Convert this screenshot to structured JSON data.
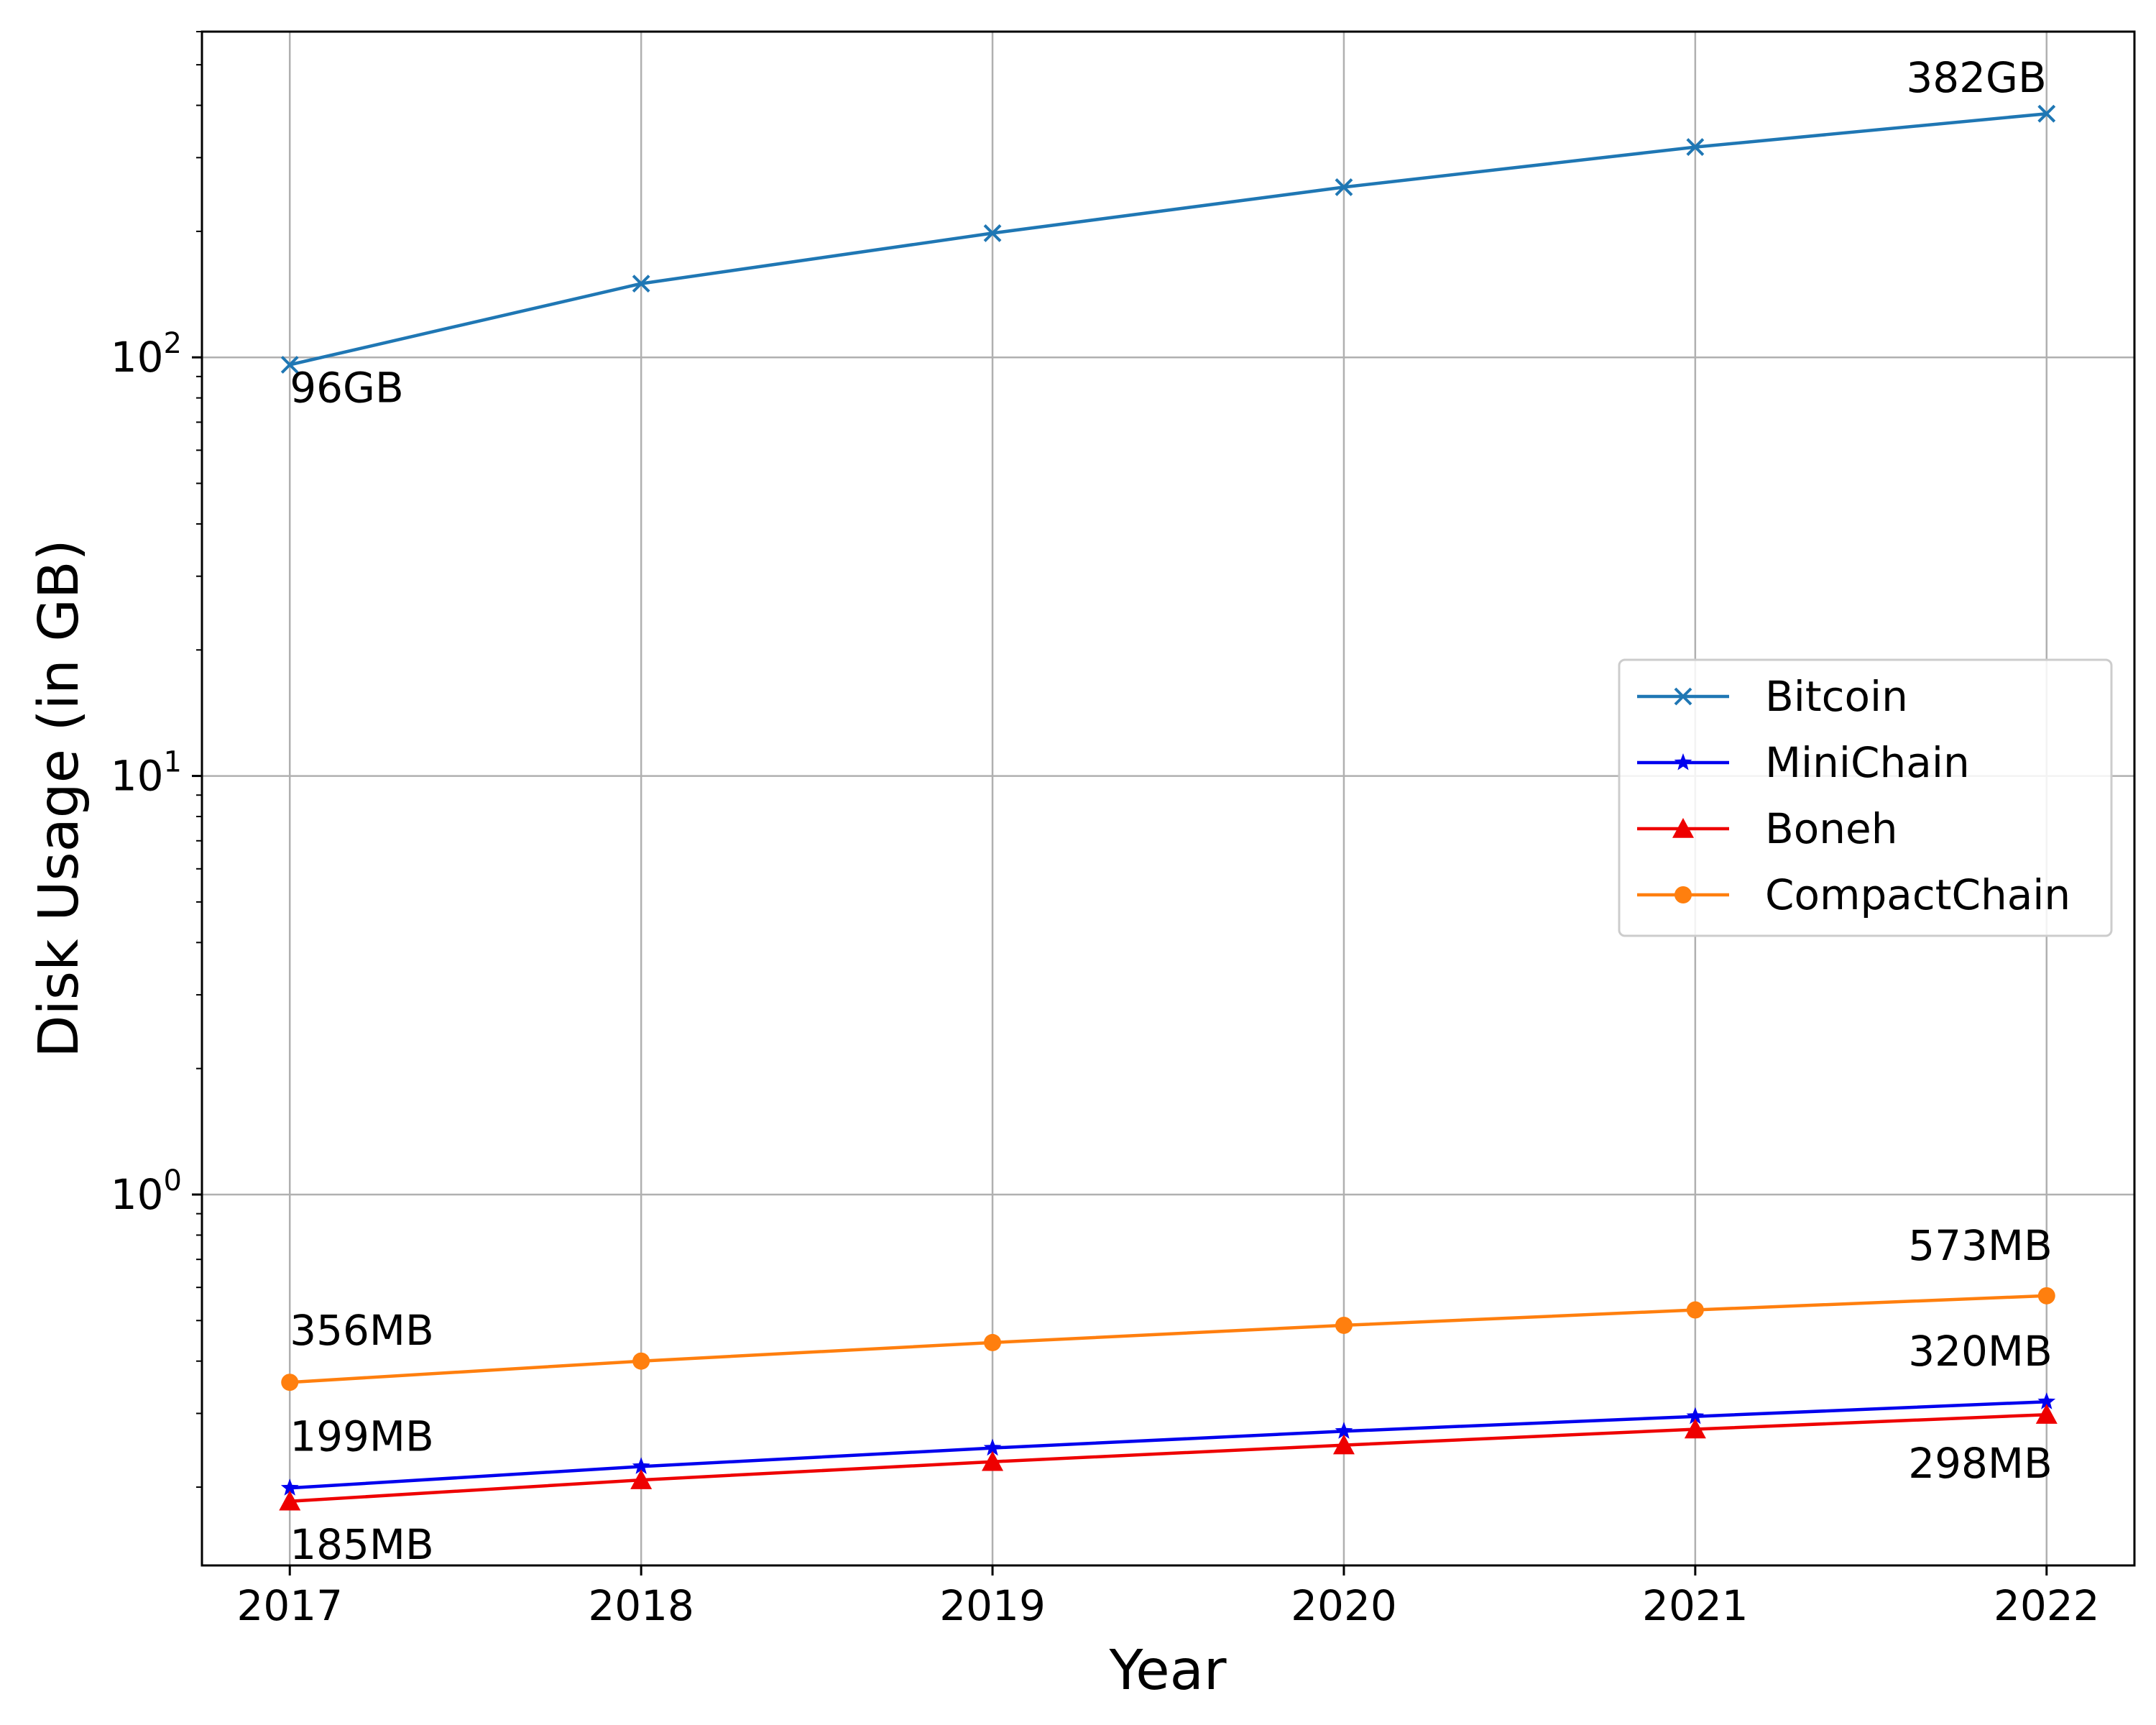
{
  "chart_data": {
    "type": "line",
    "xlabel": "Year",
    "ylabel": "Disk Usage (in GB)",
    "yscale": "log",
    "ylim": [
      0.13,
      600
    ],
    "xlim": [
      2016.75,
      2022.25
    ],
    "grid": true,
    "legend_position": "center-right",
    "x": [
      2017,
      2018,
      2019,
      2020,
      2021,
      2022
    ],
    "x_tick_labels": [
      "2017",
      "2018",
      "2019",
      "2020",
      "2021",
      "2022"
    ],
    "y_ticks": [
      {
        "value": 1,
        "base": "10",
        "exp": "0"
      },
      {
        "value": 10,
        "base": "10",
        "exp": "1"
      },
      {
        "value": 100,
        "base": "10",
        "exp": "2"
      }
    ],
    "series": [
      {
        "name": "Bitcoin",
        "color": "#1f77b4",
        "marker": "x",
        "values": [
          96,
          150,
          198,
          255,
          318,
          382
        ]
      },
      {
        "name": "MiniChain",
        "color": "#0000ee",
        "marker": "star",
        "values": [
          0.199,
          0.224,
          0.248,
          0.272,
          0.295,
          0.32
        ]
      },
      {
        "name": "Boneh",
        "color": "#ee0000",
        "marker": "triangle",
        "values": [
          0.185,
          0.208,
          0.23,
          0.252,
          0.275,
          0.298
        ]
      },
      {
        "name": "CompactChain",
        "color": "#ff7f0e",
        "marker": "circle",
        "values": [
          0.356,
          0.4,
          0.443,
          0.487,
          0.53,
          0.573
        ]
      }
    ],
    "annotations": [
      {
        "text": "96GB",
        "series": "Bitcoin",
        "x": 2017
      },
      {
        "text": "382GB",
        "series": "Bitcoin",
        "x": 2022
      },
      {
        "text": "356MB",
        "series": "CompactChain",
        "x": 2017
      },
      {
        "text": "573MB",
        "series": "CompactChain",
        "x": 2022
      },
      {
        "text": "199MB",
        "series": "MiniChain",
        "x": 2017
      },
      {
        "text": "320MB",
        "series": "MiniChain",
        "x": 2022
      },
      {
        "text": "185MB",
        "series": "Boneh",
        "x": 2017
      },
      {
        "text": "298MB",
        "series": "Boneh",
        "x": 2022
      }
    ]
  }
}
